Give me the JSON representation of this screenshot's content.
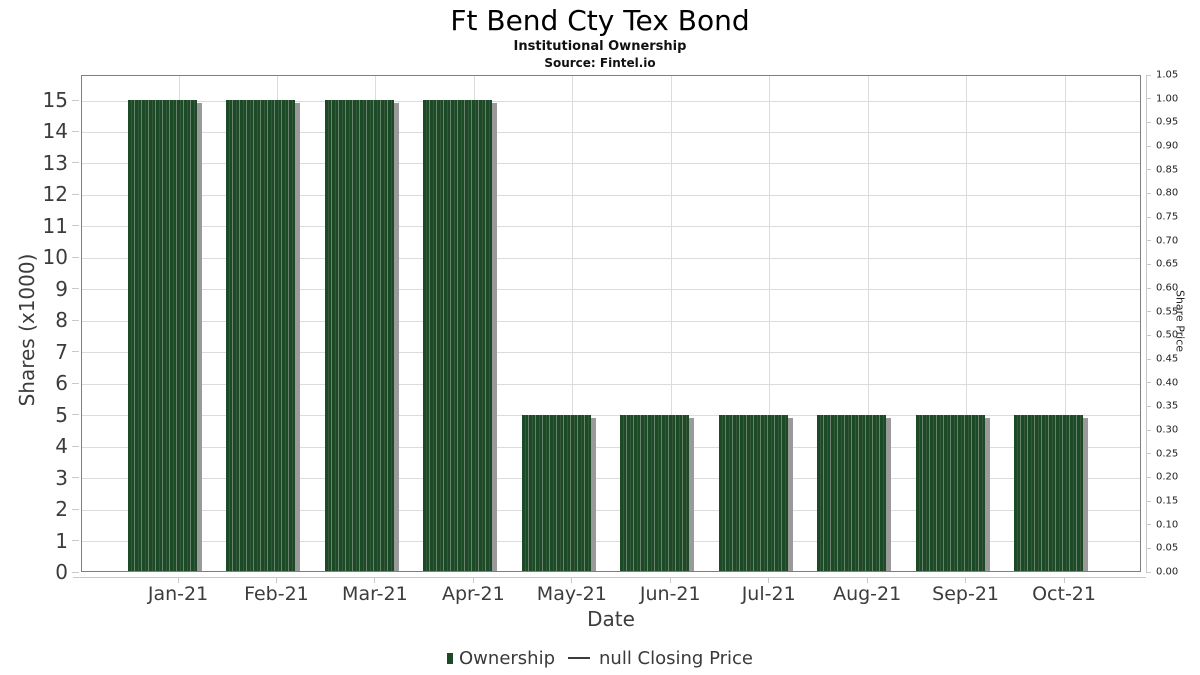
{
  "header": {
    "title": "Ft Bend Cty Tex Bond",
    "subtitle": "Institutional Ownership",
    "source": "Source: Fintel.io"
  },
  "chart_data": {
    "type": "bar",
    "title": "Ft Bend Cty Tex Bond",
    "subtitle": "Institutional Ownership",
    "source": "Source: Fintel.io",
    "categories": [
      "Jan-21",
      "Feb-21",
      "Mar-21",
      "Apr-21",
      "May-21",
      "Jun-21",
      "Jul-21",
      "Aug-21",
      "Sep-21",
      "Oct-21"
    ],
    "series": [
      {
        "name": "Ownership",
        "values": [
          15,
          15,
          15,
          15,
          5,
          5,
          5,
          5,
          5,
          5
        ]
      }
    ],
    "xlabel": "Date",
    "ylabel_left": "Shares (x1000)",
    "ylabel_right": "Share Price",
    "ylim_left": [
      0,
      15
    ],
    "ylim_right": [
      0,
      1.05
    ],
    "left_ticks": [
      0,
      1,
      2,
      3,
      4,
      5,
      6,
      7,
      8,
      9,
      10,
      11,
      12,
      13,
      14,
      15
    ],
    "right_ticks": [
      "0.00",
      "0.05",
      "0.10",
      "0.15",
      "0.20",
      "0.25",
      "0.30",
      "0.35",
      "0.40",
      "0.45",
      "0.50",
      "0.55",
      "0.60",
      "0.65",
      "0.70",
      "0.75",
      "0.80",
      "0.85",
      "0.90",
      "0.95",
      "1.00",
      "1.05"
    ],
    "grid": "on",
    "legend_position": "bottom",
    "colors": {
      "bar": "#1d4a26",
      "bar_stripe_mid": "#36593c",
      "bar_stripe_light": "#6a836e",
      "bar_shadow": "#9a9a9a",
      "grid": "#dcdcdc",
      "plot_border": "#7f7f7f"
    }
  },
  "legend": {
    "ownership_label": "Ownership",
    "price_label": "null Closing Price"
  }
}
